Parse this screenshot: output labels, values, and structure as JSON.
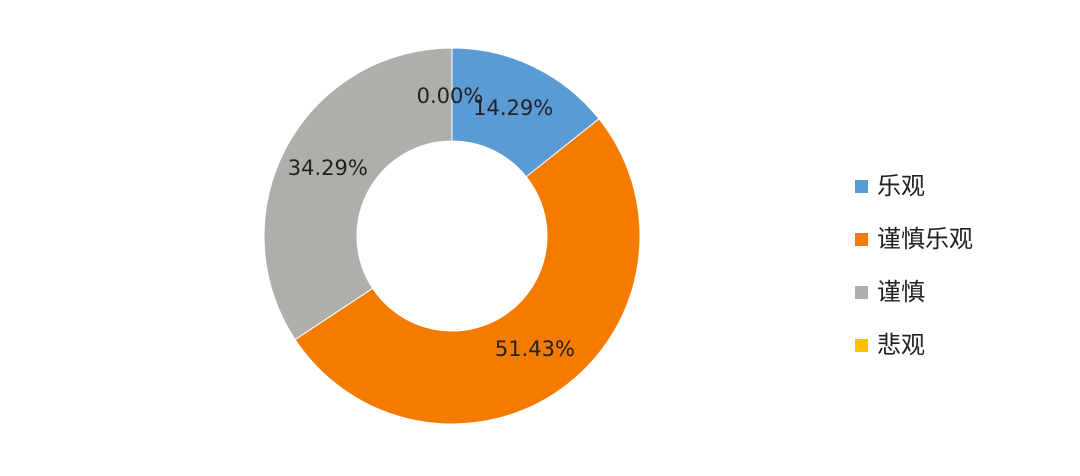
{
  "chart_data": {
    "type": "donut",
    "categories": [
      "乐观",
      "谨慎乐观",
      "谨慎",
      "悲观"
    ],
    "values": [
      14.29,
      51.43,
      34.29,
      0.0
    ],
    "value_labels": [
      "14.29%",
      "51.43%",
      "34.29%",
      "0.00%"
    ],
    "colors": [
      "#5b9bd5",
      "#f47b00",
      "#afaeaa",
      "#ffc000"
    ],
    "legend": "right"
  }
}
